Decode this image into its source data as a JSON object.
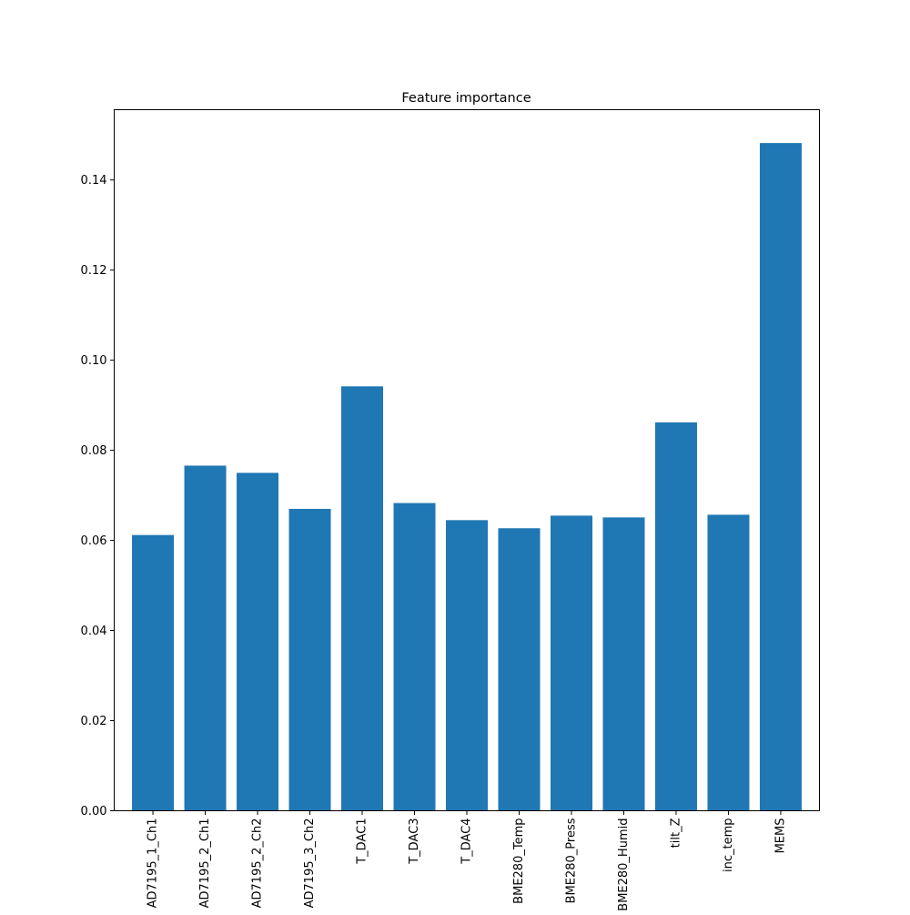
{
  "chart_data": {
    "type": "bar",
    "title": "Feature importance",
    "xlabel": "",
    "ylabel": "",
    "categories": [
      "AD7195_1_Ch1",
      "AD7195_2_Ch1",
      "AD7195_2_Ch2",
      "AD7195_3_Ch2",
      "T_DAC1",
      "T_DAC3",
      "T_DAC4",
      "BME280_Temp",
      "BME280_Press",
      "BME280_Humid",
      "tilt_Z",
      "inc_temp",
      "MEMS"
    ],
    "values": [
      0.0612,
      0.0766,
      0.075,
      0.067,
      0.0942,
      0.0683,
      0.0645,
      0.0627,
      0.0655,
      0.0651,
      0.0862,
      0.0657,
      0.1482
    ],
    "ylim": [
      0,
      0.1556
    ],
    "yticks": [
      0.0,
      0.02,
      0.04,
      0.06,
      0.08,
      0.1,
      0.12,
      0.14
    ],
    "ytick_labels": [
      "0.00",
      "0.02",
      "0.04",
      "0.06",
      "0.08",
      "0.10",
      "0.12",
      "0.14"
    ],
    "bar_color": "#1f77b4",
    "grid": false,
    "legend": "none"
  }
}
